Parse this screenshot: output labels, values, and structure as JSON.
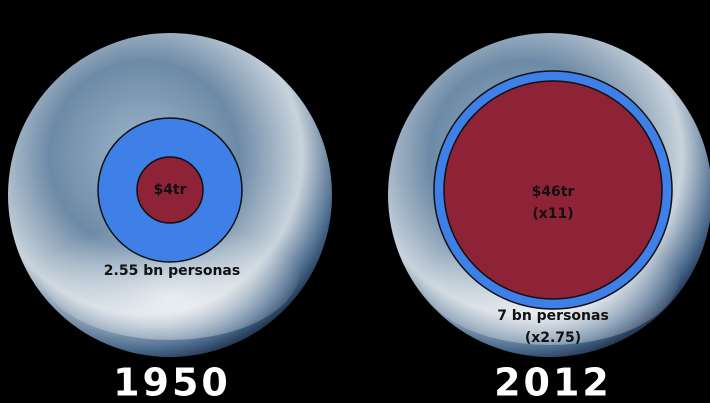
{
  "panels": [
    {
      "year": "1950",
      "gdp": "$4tr",
      "population": "2.55 bn personas"
    },
    {
      "year": "2012",
      "gdp": "$46tr",
      "gdp_change": "(x11)",
      "population": "7 bn personas",
      "population_change": "(x2.75)"
    }
  ]
}
